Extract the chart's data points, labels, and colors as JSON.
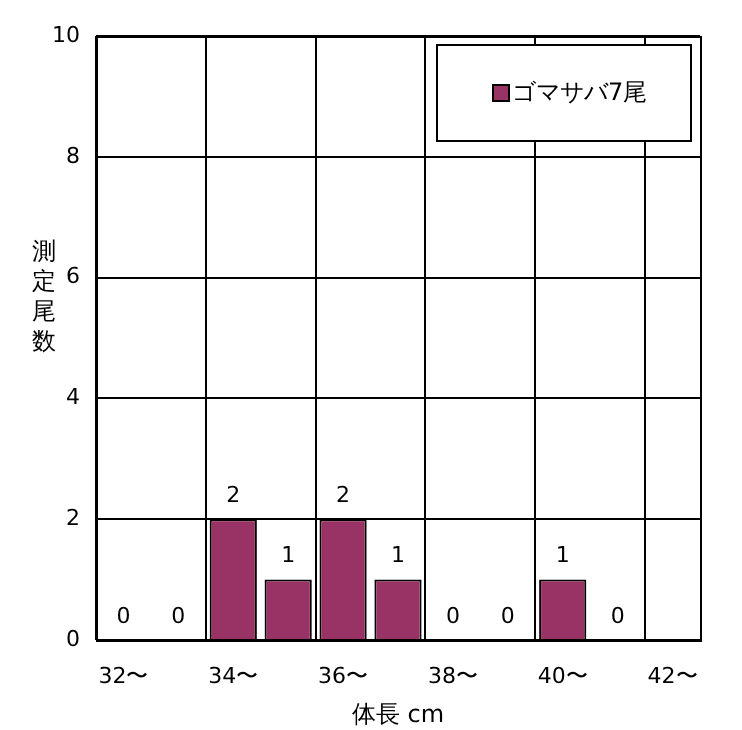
{
  "chart_data": {
    "type": "bar",
    "xlabel": "体長 cm",
    "ylabel": "測定尾数",
    "categories": [
      "32〜",
      null,
      "34〜",
      null,
      "36〜",
      null,
      "38〜",
      null,
      "40〜",
      null,
      "42〜"
    ],
    "series": [
      {
        "name": "ゴマサバ7尾",
        "color": "#993366",
        "values": [
          0,
          0,
          2,
          1,
          2,
          1,
          0,
          0,
          1,
          0,
          null
        ]
      }
    ],
    "ylim": [
      0,
      10
    ],
    "yticks": [
      0,
      2,
      4,
      6,
      8,
      10
    ],
    "grid": true,
    "legend": "top right",
    "data_labels": true
  }
}
